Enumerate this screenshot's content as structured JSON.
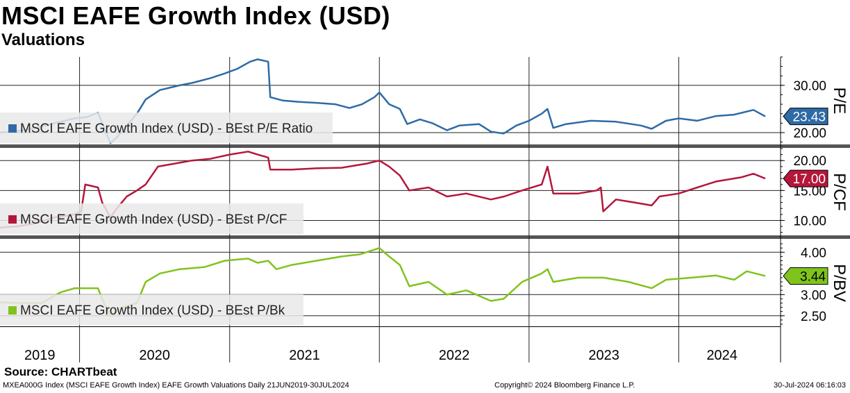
{
  "header": {
    "title": "MSCI EAFE Growth Index (USD)",
    "subtitle": "Valuations"
  },
  "footer": {
    "source": "Source: CHARTbeat",
    "info": "MXEA000G Index (MSCI EAFE Growth Index) EAFE Growth Valuations  Daily 21JUN2019-30JUL2024",
    "copyright": "Copyright© 2024 Bloomberg Finance L.P.",
    "timestamp": "30-Jul-2024 06:16:03"
  },
  "chart_data": [
    {
      "type": "line",
      "panel": "top",
      "axis_label": "P/E",
      "legend": "MSCI EAFE Growth Index (USD) - BEst P/E Ratio",
      "legend_placement": "bottom-left",
      "color": "#2e6aa5",
      "last_value_label": "23.43",
      "ylim": [
        17.5,
        36
      ],
      "yticks": [
        20,
        30
      ],
      "ytick_labels": [
        "20.00",
        "30.00"
      ],
      "grid": true,
      "x_start": "2019-06-21",
      "x_end": "2024-07-30",
      "points": [
        [
          "2019-06-21",
          20.0
        ],
        [
          "2019-08-01",
          20.3
        ],
        [
          "2019-09-15",
          21.0
        ],
        [
          "2019-11-01",
          22.0
        ],
        [
          "2019-12-20",
          23.0
        ],
        [
          "2020-01-20",
          23.3
        ],
        [
          "2020-02-15",
          24.2
        ],
        [
          "2020-02-25",
          22.0
        ],
        [
          "2020-03-16",
          17.8
        ],
        [
          "2020-04-01",
          19.0
        ],
        [
          "2020-04-25",
          21.5
        ],
        [
          "2020-05-20",
          24.0
        ],
        [
          "2020-06-10",
          27.0
        ],
        [
          "2020-07-15",
          29.0
        ],
        [
          "2020-09-01",
          30.0
        ],
        [
          "2020-10-01",
          30.5
        ],
        [
          "2020-11-15",
          31.5
        ],
        [
          "2020-12-20",
          32.5
        ],
        [
          "2021-01-20",
          33.5
        ],
        [
          "2021-02-20",
          35.0
        ],
        [
          "2021-03-10",
          35.5
        ],
        [
          "2021-04-05",
          35.0
        ],
        [
          "2021-04-10",
          27.5
        ],
        [
          "2021-05-10",
          26.8
        ],
        [
          "2021-06-20",
          26.5
        ],
        [
          "2021-08-01",
          26.3
        ],
        [
          "2021-09-15",
          26.0
        ],
        [
          "2021-10-20",
          25.2
        ],
        [
          "2021-11-20",
          26.0
        ],
        [
          "2021-12-20",
          27.5
        ],
        [
          "2022-01-01",
          28.5
        ],
        [
          "2022-01-25",
          26.0
        ],
        [
          "2022-02-20",
          25.0
        ],
        [
          "2022-03-10",
          21.8
        ],
        [
          "2022-04-10",
          22.8
        ],
        [
          "2022-05-10",
          22.0
        ],
        [
          "2022-06-15",
          20.5
        ],
        [
          "2022-07-15",
          21.5
        ],
        [
          "2022-09-01",
          21.8
        ],
        [
          "2022-09-30",
          20.2
        ],
        [
          "2022-10-31",
          19.8
        ],
        [
          "2022-12-01",
          21.5
        ],
        [
          "2023-01-01",
          22.5
        ],
        [
          "2023-02-01",
          24.0
        ],
        [
          "2023-02-15",
          25.0
        ],
        [
          "2023-03-01",
          21.0
        ],
        [
          "2023-04-01",
          21.8
        ],
        [
          "2023-06-01",
          22.5
        ],
        [
          "2023-08-01",
          22.3
        ],
        [
          "2023-10-01",
          21.5
        ],
        [
          "2023-10-27",
          20.8
        ],
        [
          "2023-12-01",
          22.5
        ],
        [
          "2024-01-01",
          23.0
        ],
        [
          "2024-02-15",
          22.5
        ],
        [
          "2024-04-01",
          23.5
        ],
        [
          "2024-05-15",
          23.8
        ],
        [
          "2024-07-01",
          24.8
        ],
        [
          "2024-07-30",
          23.43
        ]
      ]
    },
    {
      "type": "line",
      "panel": "middle",
      "axis_label": "P/CF",
      "legend": "MSCI EAFE Growth Index (USD) - BEst P/CF",
      "legend_placement": "bottom-left",
      "color": "#b5163a",
      "last_value_label": "17.00",
      "ylim": [
        7.5,
        22
      ],
      "yticks": [
        10,
        15,
        20
      ],
      "ytick_labels": [
        "10.00",
        "15.00",
        "20.00"
      ],
      "grid": true,
      "x_start": "2019-06-21",
      "x_end": "2024-07-30",
      "points": [
        [
          "2019-06-21",
          8.8
        ],
        [
          "2019-08-01",
          9.0
        ],
        [
          "2019-09-15",
          9.5
        ],
        [
          "2019-11-01",
          10.5
        ],
        [
          "2019-12-20",
          11.0
        ],
        [
          "2020-01-05",
          11.5
        ],
        [
          "2020-01-15",
          16.0
        ],
        [
          "2020-02-15",
          15.5
        ],
        [
          "2020-02-25",
          13.0
        ],
        [
          "2020-03-16",
          10.5
        ],
        [
          "2020-04-01",
          12.0
        ],
        [
          "2020-04-25",
          14.0
        ],
        [
          "2020-05-20",
          15.0
        ],
        [
          "2020-06-10",
          16.0
        ],
        [
          "2020-07-10",
          19.0
        ],
        [
          "2020-08-20",
          19.5
        ],
        [
          "2020-10-01",
          20.0
        ],
        [
          "2020-11-15",
          20.3
        ],
        [
          "2021-01-01",
          21.0
        ],
        [
          "2021-02-15",
          21.5
        ],
        [
          "2021-03-10",
          21.0
        ],
        [
          "2021-04-05",
          20.5
        ],
        [
          "2021-04-10",
          18.5
        ],
        [
          "2021-06-01",
          18.5
        ],
        [
          "2021-08-01",
          18.7
        ],
        [
          "2021-10-01",
          18.8
        ],
        [
          "2021-12-01",
          19.5
        ],
        [
          "2022-01-01",
          20.0
        ],
        [
          "2022-01-25",
          19.0
        ],
        [
          "2022-02-20",
          17.5
        ],
        [
          "2022-03-15",
          15.0
        ],
        [
          "2022-05-01",
          15.5
        ],
        [
          "2022-06-15",
          14.0
        ],
        [
          "2022-08-01",
          14.5
        ],
        [
          "2022-09-30",
          13.5
        ],
        [
          "2022-11-01",
          14.0
        ],
        [
          "2022-12-15",
          15.0
        ],
        [
          "2023-02-01",
          16.0
        ],
        [
          "2023-02-15",
          19.0
        ],
        [
          "2023-03-01",
          14.5
        ],
        [
          "2023-05-01",
          14.5
        ],
        [
          "2023-06-15",
          15.0
        ],
        [
          "2023-06-25",
          15.5
        ],
        [
          "2023-07-01",
          11.5
        ],
        [
          "2023-08-01",
          13.5
        ],
        [
          "2023-09-15",
          13.0
        ],
        [
          "2023-10-27",
          12.5
        ],
        [
          "2023-11-15",
          14.0
        ],
        [
          "2024-01-01",
          14.5
        ],
        [
          "2024-02-15",
          15.5
        ],
        [
          "2024-04-01",
          16.5
        ],
        [
          "2024-06-01",
          17.2
        ],
        [
          "2024-07-01",
          17.8
        ],
        [
          "2024-07-30",
          17.0
        ]
      ]
    },
    {
      "type": "line",
      "panel": "bottom",
      "axis_label": "P/BV",
      "legend": "MSCI EAFE Growth Index (USD) - BEst P/Bk",
      "legend_placement": "bottom-left",
      "color": "#80c31c",
      "last_value_label": "3.44",
      "ylim": [
        2.25,
        4.3
      ],
      "yticks": [
        2.5,
        3.0,
        4.0
      ],
      "ytick_labels": [
        "2.50",
        "3.00",
        "4.00"
      ],
      "grid": true,
      "x_start": "2019-06-21",
      "x_end": "2024-07-30",
      "points": [
        [
          "2019-06-21",
          2.82
        ],
        [
          "2019-08-01",
          2.8
        ],
        [
          "2019-10-01",
          2.8
        ],
        [
          "2019-11-15",
          3.05
        ],
        [
          "2019-12-20",
          3.15
        ],
        [
          "2020-02-15",
          3.15
        ],
        [
          "2020-02-25",
          2.9
        ],
        [
          "2020-03-16",
          2.5
        ],
        [
          "2020-04-15",
          2.7
        ],
        [
          "2020-05-20",
          2.8
        ],
        [
          "2020-06-10",
          3.3
        ],
        [
          "2020-07-15",
          3.5
        ],
        [
          "2020-09-01",
          3.6
        ],
        [
          "2020-11-01",
          3.65
        ],
        [
          "2020-12-20",
          3.8
        ],
        [
          "2021-02-15",
          3.85
        ],
        [
          "2021-03-10",
          3.75
        ],
        [
          "2021-04-05",
          3.8
        ],
        [
          "2021-04-25",
          3.6
        ],
        [
          "2021-06-01",
          3.7
        ],
        [
          "2021-08-01",
          3.8
        ],
        [
          "2021-10-01",
          3.9
        ],
        [
          "2021-11-15",
          3.95
        ],
        [
          "2022-01-01",
          4.1
        ],
        [
          "2022-01-25",
          3.9
        ],
        [
          "2022-02-20",
          3.7
        ],
        [
          "2022-03-15",
          3.2
        ],
        [
          "2022-05-01",
          3.3
        ],
        [
          "2022-06-15",
          3.0
        ],
        [
          "2022-08-01",
          3.1
        ],
        [
          "2022-09-30",
          2.85
        ],
        [
          "2022-10-31",
          2.9
        ],
        [
          "2022-12-15",
          3.3
        ],
        [
          "2023-02-01",
          3.5
        ],
        [
          "2023-02-15",
          3.6
        ],
        [
          "2023-03-01",
          3.3
        ],
        [
          "2023-05-01",
          3.4
        ],
        [
          "2023-07-01",
          3.4
        ],
        [
          "2023-09-01",
          3.3
        ],
        [
          "2023-10-27",
          3.15
        ],
        [
          "2023-12-01",
          3.35
        ],
        [
          "2024-02-01",
          3.4
        ],
        [
          "2024-04-01",
          3.45
        ],
        [
          "2024-05-15",
          3.35
        ],
        [
          "2024-06-15",
          3.55
        ],
        [
          "2024-07-30",
          3.44
        ]
      ]
    }
  ],
  "x_axis": {
    "year_labels": [
      "2019",
      "2020",
      "2021",
      "2022",
      "2023",
      "2024"
    ]
  }
}
